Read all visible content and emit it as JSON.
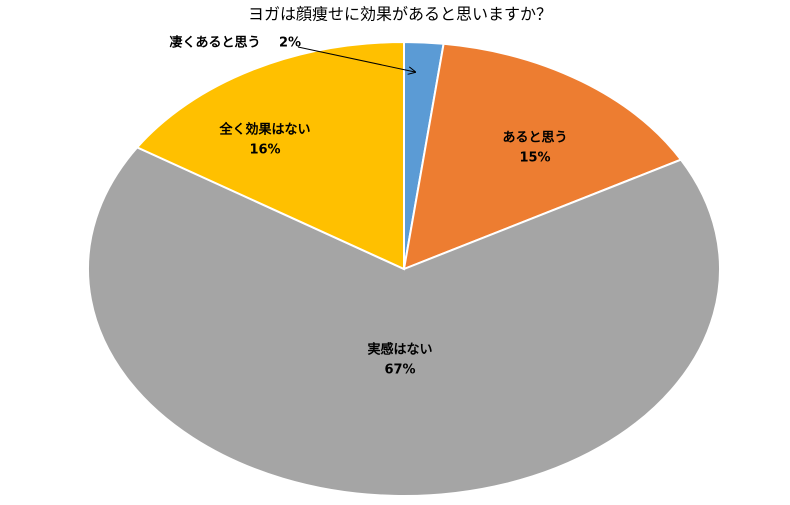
{
  "chart_data": {
    "type": "pie",
    "title": "ヨガは顔痩せに効果があると思いますか？",
    "categories": [
      "凄くあると思う",
      "あると思う",
      "実感はない",
      "全く効果はない"
    ],
    "values": [
      2,
      15,
      67,
      16
    ],
    "value_labels": [
      "2%",
      "15%",
      "67%",
      "16%"
    ],
    "colors": [
      "#5b9bd5",
      "#ed7d31",
      "#a5a5a5",
      "#ffc000"
    ]
  }
}
